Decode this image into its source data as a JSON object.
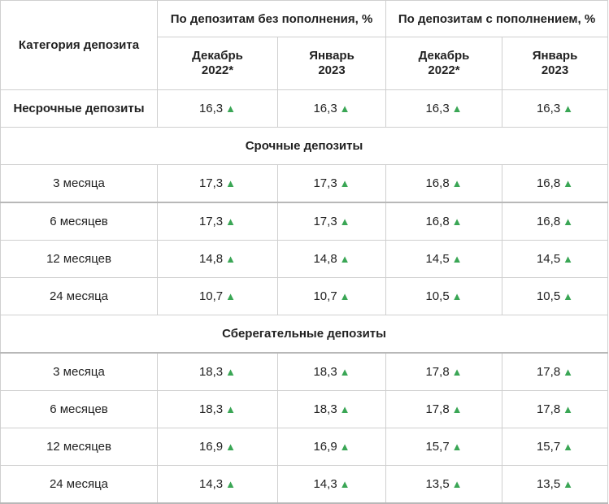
{
  "header": {
    "category": "Категория депозита",
    "group1": "По депозитам без пополнения, %",
    "group2": "По депозитам с пополнением, %",
    "col_dec_line1": "Декабрь",
    "col_dec_line2": "2022*",
    "col_jan_line1": "Январь",
    "col_jan_line2": "2023"
  },
  "arrow": "▲",
  "rows": [
    {
      "label": "Несрочные депозиты",
      "v": [
        "16,3",
        "16,3",
        "16,3",
        "16,3"
      ]
    },
    {
      "section": "Срочные депозиты"
    },
    {
      "label": "3 месяца",
      "v": [
        "17,3",
        "17,3",
        "16,8",
        "16,8"
      ]
    },
    {
      "label": "6 месяцев",
      "v": [
        "17,3",
        "17,3",
        "16,8",
        "16,8"
      ]
    },
    {
      "label": "12 месяцев",
      "v": [
        "14,8",
        "14,8",
        "14,5",
        "14,5"
      ]
    },
    {
      "label": "24 месяца",
      "v": [
        "10,7",
        "10,7",
        "10,5",
        "10,5"
      ]
    },
    {
      "section": "Сберегательные депозиты"
    },
    {
      "label": "3 месяца",
      "v": [
        "18,3",
        "18,3",
        "17,8",
        "17,8"
      ]
    },
    {
      "label": "6 месяцев",
      "v": [
        "18,3",
        "18,3",
        "17,8",
        "17,8"
      ]
    },
    {
      "label": "12 месяцев",
      "v": [
        "16,9",
        "16,9",
        "15,7",
        "15,7"
      ]
    },
    {
      "label": "24 месяца",
      "v": [
        "14,3",
        "14,3",
        "13,5",
        "13,5"
      ]
    }
  ]
}
